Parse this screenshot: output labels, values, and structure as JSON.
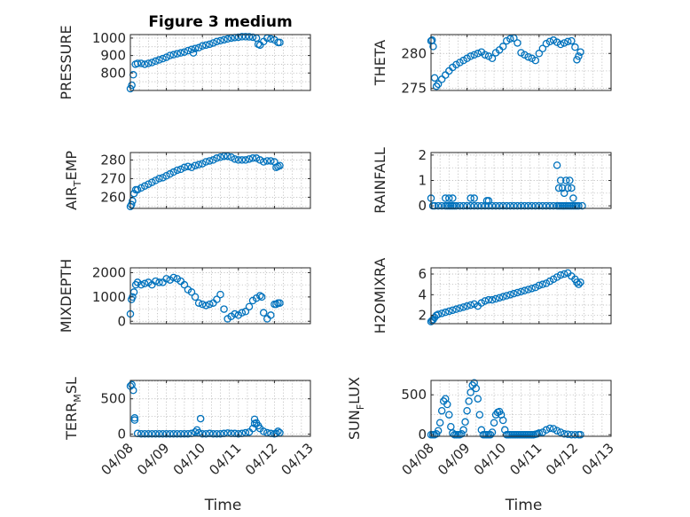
{
  "chart_data": [
    {
      "id": "pressure",
      "type": "scatter",
      "title": "Figure 3 medium",
      "xlabel": "",
      "ylabel": {
        "main": "PRESSURE",
        "sub": ""
      },
      "xlim": [
        0,
        5
      ],
      "ylim": [
        700,
        1020
      ],
      "yticks": [
        800,
        900,
        1000
      ],
      "series": [
        {
          "x": [
            0.0,
            0.04,
            0.08,
            0.14,
            0.2,
            0.3,
            0.4,
            0.5,
            0.6,
            0.7,
            0.8,
            0.9,
            1.0,
            1.1,
            1.2,
            1.3,
            1.4,
            1.5,
            1.6,
            1.7,
            1.75,
            1.8,
            1.9,
            2.0,
            2.1,
            2.2,
            2.3,
            2.4,
            2.5,
            2.6,
            2.7,
            2.8,
            2.9,
            3.0,
            3.1,
            3.2,
            3.3,
            3.4,
            3.5,
            3.55,
            3.6,
            3.7,
            3.8,
            3.9,
            4.0,
            4.1,
            4.15
          ],
          "y": [
            710,
            730,
            790,
            850,
            855,
            855,
            850,
            855,
            860,
            868,
            875,
            882,
            890,
            900,
            905,
            910,
            915,
            920,
            928,
            935,
            915,
            940,
            945,
            955,
            960,
            965,
            972,
            980,
            985,
            990,
            995,
            1000,
            1003,
            1005,
            1008,
            1008,
            1007,
            1005,
            1000,
            965,
            960,
            980,
            1000,
            995,
            990,
            975,
            975
          ]
        }
      ]
    },
    {
      "id": "theta",
      "type": "scatter",
      "xlabel": "",
      "ylabel": {
        "main": "THETA",
        "sub": ""
      },
      "xlim": [
        0,
        5
      ],
      "ylim": [
        274.7,
        282.7
      ],
      "yticks": [
        275,
        280
      ],
      "series": [
        {
          "x": [
            0.0,
            0.03,
            0.06,
            0.1,
            0.15,
            0.2,
            0.3,
            0.4,
            0.5,
            0.6,
            0.7,
            0.8,
            0.9,
            1.0,
            1.1,
            1.2,
            1.3,
            1.4,
            1.5,
            1.6,
            1.7,
            1.8,
            1.9,
            2.0,
            2.1,
            2.2,
            2.3,
            2.4,
            2.5,
            2.6,
            2.7,
            2.8,
            2.9,
            3.0,
            3.1,
            3.2,
            3.3,
            3.4,
            3.5,
            3.6,
            3.7,
            3.8,
            3.9,
            4.0,
            4.05,
            4.1,
            4.15
          ],
          "y": [
            281.8,
            281.9,
            281.0,
            276.5,
            275.3,
            275.6,
            276.3,
            276.9,
            277.5,
            278.0,
            278.4,
            278.7,
            279.0,
            279.3,
            279.6,
            279.8,
            280.0,
            280.2,
            279.8,
            279.6,
            279.3,
            280.1,
            280.5,
            281.0,
            281.8,
            282.1,
            282.2,
            281.5,
            280.1,
            279.8,
            279.5,
            279.3,
            279.0,
            280.0,
            280.7,
            281.4,
            281.7,
            281.9,
            281.6,
            281.3,
            281.5,
            281.7,
            281.8,
            280.9,
            279.1,
            279.6,
            280.2
          ]
        }
      ]
    },
    {
      "id": "air_temp",
      "type": "scatter",
      "xlabel": "",
      "ylabel": {
        "main": "AIR",
        "sub": "T",
        "rest": "EMP"
      },
      "xlim": [
        0,
        5
      ],
      "ylim": [
        254,
        284
      ],
      "yticks": [
        260,
        270,
        280
      ],
      "series": [
        {
          "x": [
            0.0,
            0.03,
            0.06,
            0.1,
            0.15,
            0.2,
            0.3,
            0.4,
            0.5,
            0.6,
            0.7,
            0.8,
            0.9,
            1.0,
            1.1,
            1.2,
            1.3,
            1.4,
            1.5,
            1.6,
            1.7,
            1.8,
            1.9,
            2.0,
            2.1,
            2.2,
            2.3,
            2.4,
            2.5,
            2.6,
            2.7,
            2.8,
            2.9,
            3.0,
            3.1,
            3.2,
            3.3,
            3.4,
            3.5,
            3.6,
            3.7,
            3.8,
            3.9,
            4.0,
            4.05,
            4.1,
            4.15
          ],
          "y": [
            255,
            256,
            258,
            262,
            264,
            264,
            265,
            266,
            267,
            268,
            269,
            270,
            270.5,
            271.5,
            272.5,
            273.5,
            274.5,
            275,
            276,
            276.5,
            276,
            277,
            277.5,
            278,
            279,
            279.5,
            280,
            281,
            281.5,
            282,
            282,
            281.5,
            280.5,
            280,
            280,
            280,
            280.5,
            281,
            281,
            280,
            279,
            279.5,
            279.5,
            279,
            276,
            276.5,
            277
          ]
        }
      ]
    },
    {
      "id": "rainfall",
      "type": "scatter",
      "xlabel": "",
      "ylabel": {
        "main": "RAINFALL",
        "sub": ""
      },
      "xlim": [
        0,
        5
      ],
      "ylim": [
        -0.1,
        2.1
      ],
      "yticks": [
        0,
        1,
        2
      ],
      "series": [
        {
          "x": [
            0.0,
            0.05,
            0.1,
            0.2,
            0.3,
            0.4,
            0.45,
            0.5,
            0.55,
            0.6,
            0.65,
            0.7,
            0.8,
            0.9,
            1.0,
            1.1,
            1.2,
            1.3,
            1.4,
            1.5,
            1.6,
            1.7,
            1.8,
            1.9,
            2.0,
            2.1,
            2.2,
            2.3,
            2.4,
            2.5,
            2.6,
            2.7,
            2.8,
            2.9,
            3.0,
            3.1,
            3.2,
            3.3,
            3.4,
            3.5,
            3.55,
            3.6,
            3.65,
            3.7,
            3.75,
            3.8,
            3.85,
            3.9,
            3.95,
            4.0,
            4.05,
            4.1,
            4.2,
            0.4,
            0.5,
            0.6,
            1.1,
            1.2,
            1.55,
            1.6,
            3.5,
            3.55,
            3.6,
            3.65,
            3.7,
            3.75,
            3.8,
            3.85,
            3.9,
            3.95
          ],
          "y": [
            0.3,
            0,
            0,
            0,
            0,
            0,
            0,
            0,
            0,
            0,
            0,
            0,
            0,
            0,
            0,
            0,
            0,
            0,
            0,
            0,
            0,
            0,
            0,
            0,
            0,
            0,
            0,
            0,
            0,
            0,
            0,
            0,
            0,
            0,
            0,
            0,
            0,
            0,
            0,
            0,
            0,
            0,
            0,
            0,
            0,
            0,
            0,
            0,
            0,
            0,
            0,
            0,
            0,
            0.3,
            0.3,
            0.3,
            0.3,
            0.3,
            0.2,
            0.2,
            1.6,
            0.7,
            1.0,
            0.7,
            0.5,
            1.0,
            0.7,
            1.0,
            0.7,
            0.3
          ]
        }
      ]
    },
    {
      "id": "mixdepth",
      "type": "scatter",
      "xlabel": "",
      "ylabel": {
        "main": "MIXDEPTH",
        "sub": ""
      },
      "xlim": [
        0,
        5
      ],
      "ylim": [
        -100,
        2200
      ],
      "yticks": [
        0,
        1000,
        2000
      ],
      "series": [
        {
          "x": [
            0.0,
            0.03,
            0.06,
            0.1,
            0.15,
            0.2,
            0.3,
            0.4,
            0.5,
            0.6,
            0.7,
            0.8,
            0.9,
            1.0,
            1.1,
            1.2,
            1.3,
            1.4,
            1.5,
            1.6,
            1.7,
            1.8,
            1.9,
            2.0,
            2.1,
            2.2,
            2.3,
            2.4,
            2.5,
            2.6,
            2.7,
            2.8,
            2.9,
            3.0,
            3.1,
            3.2,
            3.3,
            3.4,
            3.5,
            3.6,
            3.65,
            3.7,
            3.8,
            3.9,
            4.0,
            4.05,
            4.1,
            4.15
          ],
          "y": [
            300,
            900,
            1000,
            1200,
            1500,
            1600,
            1500,
            1550,
            1600,
            1500,
            1650,
            1600,
            1600,
            1750,
            1700,
            1800,
            1750,
            1650,
            1500,
            1300,
            1200,
            1000,
            750,
            700,
            650,
            700,
            750,
            900,
            1100,
            500,
            100,
            200,
            300,
            250,
            350,
            400,
            600,
            850,
            950,
            1050,
            1000,
            350,
            100,
            250,
            700,
            700,
            750,
            750
          ]
        }
      ]
    },
    {
      "id": "h2omixra",
      "type": "scatter",
      "xlabel": "",
      "ylabel": {
        "main": "H2OMIXRA",
        "sub": ""
      },
      "xlim": [
        0,
        5
      ],
      "ylim": [
        1.2,
        6.6
      ],
      "yticks": [
        2,
        4,
        6
      ],
      "series": [
        {
          "x": [
            0.0,
            0.03,
            0.06,
            0.1,
            0.15,
            0.2,
            0.3,
            0.4,
            0.5,
            0.6,
            0.7,
            0.8,
            0.9,
            1.0,
            1.1,
            1.2,
            1.3,
            1.4,
            1.5,
            1.6,
            1.7,
            1.8,
            1.9,
            2.0,
            2.1,
            2.2,
            2.3,
            2.4,
            2.5,
            2.6,
            2.7,
            2.8,
            2.9,
            3.0,
            3.1,
            3.2,
            3.3,
            3.4,
            3.5,
            3.6,
            3.7,
            3.8,
            3.9,
            4.0,
            4.05,
            4.1,
            4.15
          ],
          "y": [
            1.4,
            1.5,
            1.6,
            1.8,
            2.0,
            2.1,
            2.2,
            2.3,
            2.4,
            2.5,
            2.6,
            2.7,
            2.8,
            2.9,
            3.0,
            3.1,
            2.9,
            3.2,
            3.4,
            3.5,
            3.5,
            3.6,
            3.7,
            3.8,
            3.9,
            4.0,
            4.1,
            4.2,
            4.3,
            4.4,
            4.5,
            4.6,
            4.7,
            4.9,
            5.0,
            5.1,
            5.3,
            5.5,
            5.7,
            5.9,
            6.0,
            6.1,
            5.8,
            5.5,
            5.2,
            5.0,
            5.2
          ]
        }
      ]
    },
    {
      "id": "terr_msl",
      "type": "scatter",
      "xlabel": "Time",
      "ylabel": {
        "main": "TERR",
        "sub": "M",
        "rest": "SL"
      },
      "xlim": [
        0,
        5
      ],
      "ylim": [
        -30,
        760
      ],
      "yticks": [
        0,
        500
      ],
      "xticks": [
        "04/08",
        "04/09",
        "04/10",
        "04/11",
        "04/12",
        "04/13"
      ],
      "series": [
        {
          "x": [
            0.0,
            0.04,
            0.08,
            0.12,
            0.2,
            0.3,
            0.4,
            0.5,
            0.6,
            0.7,
            0.8,
            0.9,
            1.0,
            1.1,
            1.2,
            1.3,
            1.4,
            1.5,
            1.6,
            1.7,
            1.8,
            1.9,
            2.0,
            2.1,
            2.2,
            2.3,
            2.4,
            2.5,
            2.6,
            2.7,
            2.8,
            2.9,
            3.0,
            3.1,
            3.2,
            3.3,
            3.4,
            3.45,
            3.5,
            3.55,
            3.6,
            3.7,
            3.8,
            3.9,
            4.0,
            4.05,
            4.1,
            4.15,
            1.85,
            1.95,
            0.12,
            3.45
          ],
          "y": [
            680,
            700,
            620,
            230,
            10,
            5,
            5,
            5,
            5,
            5,
            5,
            5,
            5,
            5,
            5,
            5,
            5,
            5,
            5,
            10,
            30,
            20,
            5,
            5,
            10,
            5,
            5,
            5,
            10,
            15,
            10,
            10,
            5,
            10,
            20,
            30,
            80,
            210,
            160,
            120,
            80,
            40,
            20,
            10,
            5,
            10,
            40,
            20,
            60,
            220,
            200,
            150
          ]
        }
      ]
    },
    {
      "id": "sun_flux",
      "type": "scatter",
      "xlabel": "Time",
      "ylabel": {
        "main": "SUN",
        "sub": "F",
        "rest": "LUX"
      },
      "xlim": [
        0,
        5
      ],
      "ylim": [
        -20,
        680
      ],
      "yticks": [
        0,
        500
      ],
      "xticks": [
        "04/08",
        "04/09",
        "04/10",
        "04/11",
        "04/12",
        "04/13"
      ],
      "series": [
        {
          "x": [
            0.0,
            0.05,
            0.1,
            0.15,
            0.2,
            0.25,
            0.3,
            0.35,
            0.4,
            0.45,
            0.5,
            0.55,
            0.6,
            0.65,
            0.7,
            0.75,
            0.8,
            0.85,
            0.9,
            0.95,
            1.0,
            1.05,
            1.1,
            1.15,
            1.2,
            1.25,
            1.3,
            1.35,
            1.4,
            1.45,
            1.5,
            1.55,
            1.6,
            1.65,
            1.7,
            1.75,
            1.8,
            1.85,
            1.9,
            1.95,
            2.0,
            2.05,
            2.1,
            2.15,
            2.2,
            2.25,
            2.3,
            2.35,
            2.4,
            2.45,
            2.5,
            2.55,
            2.6,
            2.65,
            2.7,
            2.75,
            2.8,
            2.85,
            2.9,
            2.95,
            3.0,
            3.1,
            3.2,
            3.3,
            3.4,
            3.5,
            3.6,
            3.7,
            3.8,
            3.9,
            4.0,
            4.1,
            4.15
          ],
          "y": [
            0,
            0,
            0,
            10,
            50,
            150,
            300,
            420,
            450,
            380,
            250,
            100,
            20,
            0,
            0,
            0,
            0,
            10,
            60,
            160,
            300,
            420,
            530,
            620,
            650,
            580,
            450,
            250,
            60,
            0,
            0,
            0,
            0,
            0,
            30,
            150,
            250,
            280,
            290,
            250,
            180,
            60,
            0,
            0,
            0,
            0,
            0,
            0,
            0,
            0,
            0,
            0,
            0,
            0,
            0,
            0,
            0,
            0,
            5,
            10,
            20,
            30,
            60,
            80,
            75,
            50,
            30,
            10,
            5,
            0,
            0,
            0,
            0
          ]
        }
      ]
    }
  ]
}
